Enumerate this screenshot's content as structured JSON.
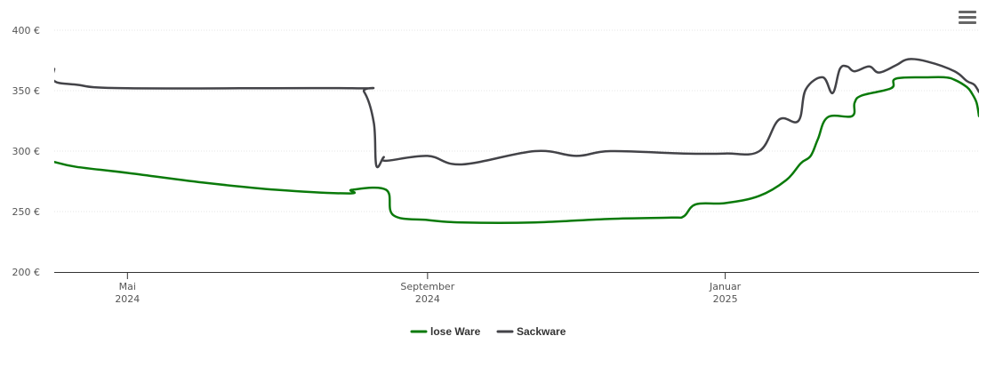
{
  "chart_data": {
    "type": "line",
    "title": "",
    "xlabel": "",
    "ylabel": "",
    "ylim": [
      200,
      400
    ],
    "yticks": [
      200,
      250,
      300,
      350,
      400
    ],
    "y_unit": "€",
    "grid": "horizontal dotted",
    "legend_placement": "bottom-center",
    "x_range": [
      "2024-04-01",
      "2025-04-15"
    ],
    "x_ticks": [
      {
        "date": "2024-05-01",
        "month": "Mai",
        "year": "2024"
      },
      {
        "date": "2024-09-01",
        "month": "September",
        "year": "2024"
      },
      {
        "date": "2025-01-01",
        "month": "Januar",
        "year": "2025"
      }
    ],
    "series": [
      {
        "name": "lose Ware",
        "color": "#0a7a0a",
        "points": [
          [
            "2024-04-01",
            291
          ],
          [
            "2024-04-10",
            287
          ],
          [
            "2024-05-01",
            282
          ],
          [
            "2024-06-01",
            274
          ],
          [
            "2024-07-01",
            268
          ],
          [
            "2024-07-31",
            265
          ],
          [
            "2024-08-01",
            268
          ],
          [
            "2024-08-15",
            268
          ],
          [
            "2024-08-18",
            247
          ],
          [
            "2024-09-01",
            243
          ],
          [
            "2024-09-15",
            241
          ],
          [
            "2024-10-15",
            241
          ],
          [
            "2024-11-15",
            244
          ],
          [
            "2024-12-10",
            245
          ],
          [
            "2024-12-15",
            246
          ],
          [
            "2024-12-20",
            256
          ],
          [
            "2025-01-01",
            257
          ],
          [
            "2025-01-15",
            263
          ],
          [
            "2025-01-26",
            276
          ],
          [
            "2025-02-01",
            290
          ],
          [
            "2025-02-05",
            296
          ],
          [
            "2025-02-08",
            310
          ],
          [
            "2025-02-12",
            328
          ],
          [
            "2025-02-22",
            329
          ],
          [
            "2025-02-23",
            340
          ],
          [
            "2025-02-26",
            346
          ],
          [
            "2025-03-10",
            352
          ],
          [
            "2025-03-12",
            360
          ],
          [
            "2025-03-25",
            361
          ],
          [
            "2025-04-01",
            361
          ],
          [
            "2025-04-05",
            359
          ],
          [
            "2025-04-10",
            353
          ],
          [
            "2025-04-12",
            348
          ],
          [
            "2025-04-14",
            340
          ],
          [
            "2025-04-15",
            329
          ]
        ]
      },
      {
        "name": "Sackware",
        "color": "#434348",
        "points": [
          [
            "2024-04-01",
            368
          ],
          [
            "2024-04-01",
            358
          ],
          [
            "2024-04-10",
            355
          ],
          [
            "2024-05-01",
            352
          ],
          [
            "2024-08-01",
            352
          ],
          [
            "2024-08-06",
            349
          ],
          [
            "2024-08-10",
            323
          ],
          [
            "2024-08-11",
            288
          ],
          [
            "2024-08-14",
            295
          ],
          [
            "2024-08-15",
            292
          ],
          [
            "2024-09-01",
            296
          ],
          [
            "2024-09-15",
            289
          ],
          [
            "2024-10-15",
            300
          ],
          [
            "2024-11-01",
            296
          ],
          [
            "2024-11-15",
            300
          ],
          [
            "2024-12-15",
            298
          ],
          [
            "2025-01-01",
            298
          ],
          [
            "2025-01-15",
            300
          ],
          [
            "2025-01-23",
            326
          ],
          [
            "2025-01-31",
            325
          ],
          [
            "2025-02-03",
            351
          ],
          [
            "2025-02-10",
            361
          ],
          [
            "2025-02-14",
            348
          ],
          [
            "2025-02-17",
            368
          ],
          [
            "2025-02-20",
            370
          ],
          [
            "2025-02-23",
            366
          ],
          [
            "2025-03-01",
            370
          ],
          [
            "2025-03-05",
            365
          ],
          [
            "2025-03-12",
            371
          ],
          [
            "2025-03-17",
            376
          ],
          [
            "2025-03-25",
            374
          ],
          [
            "2025-04-05",
            366
          ],
          [
            "2025-04-10",
            358
          ],
          [
            "2025-04-13",
            355
          ],
          [
            "2025-04-15",
            349
          ]
        ]
      }
    ]
  },
  "menu_icon": "hamburger-menu-icon"
}
